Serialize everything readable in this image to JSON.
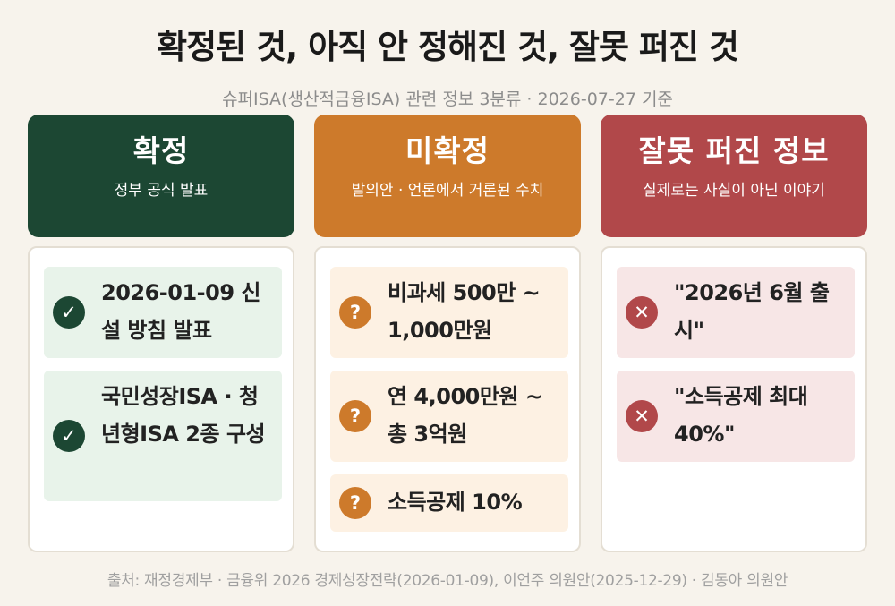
{
  "title": "확정된 것, 아직 안 정해진 것, 잘못 퍼진 것",
  "subtitle": "슈퍼ISA(생산적금융ISA) 관련 정보 3분류 · 2026-07-27 기준",
  "colors": {
    "confirmed": "#1c4733",
    "unconfirmed": "#cd7a2b",
    "misinfo": "#b1484a",
    "background": "#f7f3ec"
  },
  "columns": [
    {
      "title": "확정",
      "desc": "정부 공식 발표",
      "icon": "check-icon",
      "items": [
        "2026-01-09 신설 방침 발표",
        "국민성장ISA · 청년형ISA 2종 구성"
      ]
    },
    {
      "title": "미확정",
      "desc": "발의안 · 언론에서 거론된 수치",
      "icon": "question-icon",
      "items": [
        "비과세 500만 ~ 1,000만원",
        "연 4,000만원 ~ 총 3억원",
        "소득공제 10%"
      ]
    },
    {
      "title": "잘못 퍼진 정보",
      "desc": "실제로는 사실이 아닌 이야기",
      "icon": "x-icon",
      "items": [
        "\"2026년 6월 출시\"",
        "\"소득공제 최대 40%\""
      ]
    }
  ],
  "footer": "출처: 재정경제부 · 금융위 2026 경제성장전략(2026-01-09), 이언주 의원안(2025-12-29) · 김동아 의원안"
}
